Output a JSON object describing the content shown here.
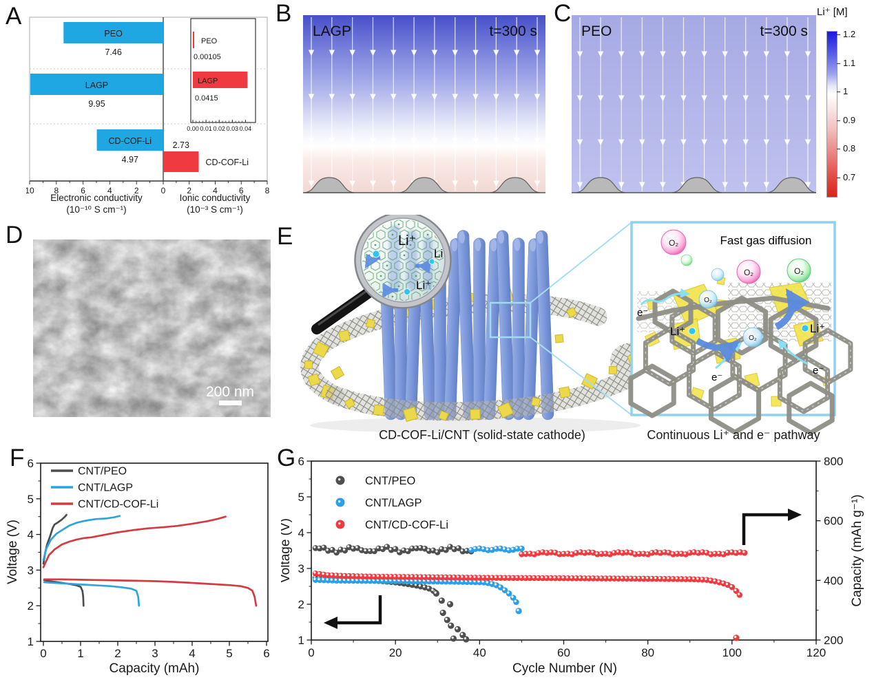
{
  "panels": {
    "a": "A",
    "b": "B",
    "c": "C",
    "d": "D",
    "e": "E",
    "f": "F",
    "g": "G"
  },
  "panelB": {
    "material": "LAGP",
    "time": "t=300 s"
  },
  "panelC": {
    "material": "PEO",
    "time": "t=300 s"
  },
  "colorbar": {
    "title": "Li⁺ [M]",
    "ticks": [
      1.2,
      1.1,
      1,
      0.9,
      0.8,
      0.7
    ]
  },
  "panelD": {
    "scalebar": "200 nm"
  },
  "panelE": {
    "caption_left": "CD-COF-Li/CNT (solid-state cathode)",
    "caption_right": "Continuous Li⁺ and e⁻ pathway",
    "inset_title": "Fast gas diffusion",
    "li": "Li⁺",
    "o2": "O₂",
    "e": "e⁻"
  },
  "chart_data": [
    {
      "id": "A",
      "type": "bar",
      "orientation": "horizontal_diverging",
      "categories": [
        "PEO",
        "LAGP",
        "CD-COF-Li"
      ],
      "left": {
        "title": "Electronic conductivity",
        "unit": "(10⁻¹⁰ S cm⁻¹)",
        "color": "#1ea7e3",
        "values": [
          7.46,
          9.95,
          4.97
        ],
        "labels": [
          "7.46",
          "9.95",
          "4.97"
        ],
        "ticks": [
          10,
          8,
          6,
          4,
          2,
          0
        ],
        "max": 10
      },
      "right": {
        "title": "Ionic conductivity",
        "unit": "(10⁻³ S cm⁻¹)",
        "color": "#ee3a40",
        "values": [
          0.00105,
          0.0415,
          2.73
        ],
        "labels": [
          "0.00105",
          "0.0415",
          "2.73"
        ],
        "ticks": [
          2,
          4,
          6,
          8
        ],
        "max": 8
      },
      "inset": {
        "categories": [
          "PEO",
          "LAGP"
        ],
        "values": [
          0.00105,
          0.0415
        ],
        "labels": [
          "0.00105",
          "0.0415"
        ],
        "ticks": [
          "0.00",
          "0.01",
          "0.02",
          "0.03",
          "0.04"
        ],
        "max": 0.045
      }
    },
    {
      "id": "F",
      "type": "line",
      "xlabel": "Capacity (mAh)",
      "ylabel": "Voltage (V)",
      "xlim": [
        0,
        6
      ],
      "ylim": [
        1,
        6
      ],
      "xticks": [
        0,
        1,
        2,
        3,
        4,
        5,
        6
      ],
      "yticks": [
        1,
        2,
        3,
        4,
        5,
        6
      ],
      "series": [
        {
          "name": "CNT/PEO",
          "color": "#4d4d4d",
          "charge": [
            [
              0,
              3.18
            ],
            [
              0.05,
              3.5
            ],
            [
              0.1,
              3.72
            ],
            [
              0.18,
              3.95
            ],
            [
              0.25,
              4.18
            ],
            [
              0.3,
              4.28
            ],
            [
              0.38,
              4.33
            ],
            [
              0.5,
              4.42
            ],
            [
              0.58,
              4.5
            ],
            [
              0.62,
              4.55
            ]
          ],
          "discharge": [
            [
              0.02,
              2.72
            ],
            [
              0.1,
              2.7
            ],
            [
              0.3,
              2.67
            ],
            [
              0.5,
              2.64
            ],
            [
              0.7,
              2.61
            ],
            [
              0.9,
              2.57
            ],
            [
              1.0,
              2.53
            ],
            [
              1.05,
              2.42
            ],
            [
              1.07,
              2.25
            ],
            [
              1.08,
              2.0
            ]
          ]
        },
        {
          "name": "CNT/LAGP",
          "color": "#2aa5dd",
          "charge": [
            [
              0,
              3.28
            ],
            [
              0.08,
              3.6
            ],
            [
              0.2,
              3.85
            ],
            [
              0.35,
              4.02
            ],
            [
              0.5,
              4.12
            ],
            [
              0.7,
              4.25
            ],
            [
              0.9,
              4.33
            ],
            [
              1.1,
              4.38
            ],
            [
              1.4,
              4.43
            ],
            [
              1.7,
              4.45
            ],
            [
              1.9,
              4.48
            ],
            [
              2.05,
              4.52
            ]
          ],
          "discharge": [
            [
              0.02,
              2.66
            ],
            [
              0.3,
              2.64
            ],
            [
              0.8,
              2.61
            ],
            [
              1.3,
              2.58
            ],
            [
              1.8,
              2.55
            ],
            [
              2.1,
              2.52
            ],
            [
              2.35,
              2.48
            ],
            [
              2.5,
              2.42
            ],
            [
              2.55,
              2.25
            ],
            [
              2.57,
              2.0
            ]
          ]
        },
        {
          "name": "CNT/CD-COF-Li",
          "color": "#d43a3f",
          "charge": [
            [
              0,
              3.08
            ],
            [
              0.15,
              3.42
            ],
            [
              0.3,
              3.58
            ],
            [
              0.5,
              3.72
            ],
            [
              0.7,
              3.8
            ],
            [
              0.9,
              3.86
            ],
            [
              1.1,
              3.9
            ],
            [
              1.3,
              3.92
            ],
            [
              1.6,
              3.98
            ],
            [
              2.0,
              4.06
            ],
            [
              2.4,
              4.12
            ],
            [
              2.8,
              4.17
            ],
            [
              3.2,
              4.2
            ],
            [
              3.6,
              4.24
            ],
            [
              4.0,
              4.3
            ],
            [
              4.4,
              4.37
            ],
            [
              4.7,
              4.44
            ],
            [
              4.9,
              4.5
            ]
          ],
          "discharge": [
            [
              0.02,
              2.74
            ],
            [
              0.5,
              2.74
            ],
            [
              1.0,
              2.73
            ],
            [
              1.5,
              2.72
            ],
            [
              2.0,
              2.71
            ],
            [
              2.5,
              2.7
            ],
            [
              3.0,
              2.69
            ],
            [
              3.5,
              2.67
            ],
            [
              4.0,
              2.64
            ],
            [
              4.5,
              2.61
            ],
            [
              5.0,
              2.58
            ],
            [
              5.3,
              2.55
            ],
            [
              5.5,
              2.5
            ],
            [
              5.62,
              2.42
            ],
            [
              5.68,
              2.25
            ],
            [
              5.72,
              2.0
            ]
          ]
        }
      ]
    },
    {
      "id": "G",
      "type": "scatter",
      "xlabel": "Cycle Number (N)",
      "ylabel_left": "Voltage (V)",
      "ylabel_right": "Capacity (mAh g⁻¹)",
      "xlim": [
        0,
        120
      ],
      "ylim_left": [
        1,
        6
      ],
      "ylim_right": [
        200,
        800
      ],
      "xticks": [
        0,
        20,
        40,
        60,
        80,
        100,
        120
      ],
      "yticks_left": [
        1,
        2,
        3,
        4,
        5,
        6
      ],
      "yticks_right": [
        200,
        400,
        600,
        800
      ],
      "series": [
        {
          "name": "CNT/PEO",
          "color": "#4f4f4f",
          "voltage": [
            [
              1,
              2.74
            ],
            [
              6,
              2.71
            ],
            [
              12,
              2.68
            ],
            [
              17,
              2.64
            ],
            [
              20,
              2.61
            ],
            [
              23,
              2.56
            ],
            [
              25,
              2.52
            ],
            [
              27,
              2.47
            ],
            [
              28.5,
              2.42
            ],
            [
              29.5,
              2.33
            ]
          ],
          "voltage_tail": [
            [
              29.7,
              2.3
            ],
            [
              31,
              2.1
            ],
            [
              33,
              2.0
            ],
            [
              31.3,
              1.76
            ],
            [
              32.3,
              1.56
            ],
            [
              33.2,
              1.4
            ],
            [
              34.8,
              1.3
            ],
            [
              33.8,
              1.04
            ],
            [
              36,
              1.14
            ],
            [
              36.8,
              1.02
            ]
          ],
          "capacity_cycles": [
            1,
            38
          ],
          "capacity": 503
        },
        {
          "name": "CNT/LAGP",
          "color": "#2b9fe8",
          "voltage": [
            [
              1,
              2.68
            ],
            [
              6,
              2.66
            ],
            [
              15,
              2.65
            ],
            [
              25,
              2.64
            ],
            [
              33,
              2.63
            ],
            [
              38,
              2.62
            ],
            [
              41,
              2.61
            ],
            [
              42.5,
              2.58
            ],
            [
              44,
              2.53
            ],
            [
              45,
              2.47
            ],
            [
              46,
              2.39
            ],
            [
              47,
              2.3
            ],
            [
              48,
              2.18
            ],
            [
              48.7,
              2.06
            ]
          ],
          "voltage_tail": [
            [
              49.3,
              1.81
            ]
          ],
          "capacity_cycles": [
            38,
            50
          ],
          "capacity": 504
        },
        {
          "name": "CNT/CD-COF-Li",
          "color": "#ef3b40",
          "voltage": [
            [
              1,
              2.86
            ],
            [
              4,
              2.81
            ],
            [
              8,
              2.79
            ],
            [
              15,
              2.77
            ],
            [
              25,
              2.76
            ],
            [
              40,
              2.74
            ],
            [
              55,
              2.73
            ],
            [
              70,
              2.72
            ],
            [
              82,
              2.71
            ],
            [
              90,
              2.7
            ],
            [
              94,
              2.68
            ],
            [
              96,
              2.64
            ],
            [
              98,
              2.58
            ],
            [
              99.5,
              2.52
            ],
            [
              100.5,
              2.44
            ],
            [
              101.3,
              2.33
            ],
            [
              101.8,
              2.26
            ]
          ],
          "voltage_tail": [
            [
              101,
              1.06
            ]
          ],
          "capacity_cycles": [
            50,
            103
          ],
          "capacity": 491
        }
      ]
    }
  ]
}
